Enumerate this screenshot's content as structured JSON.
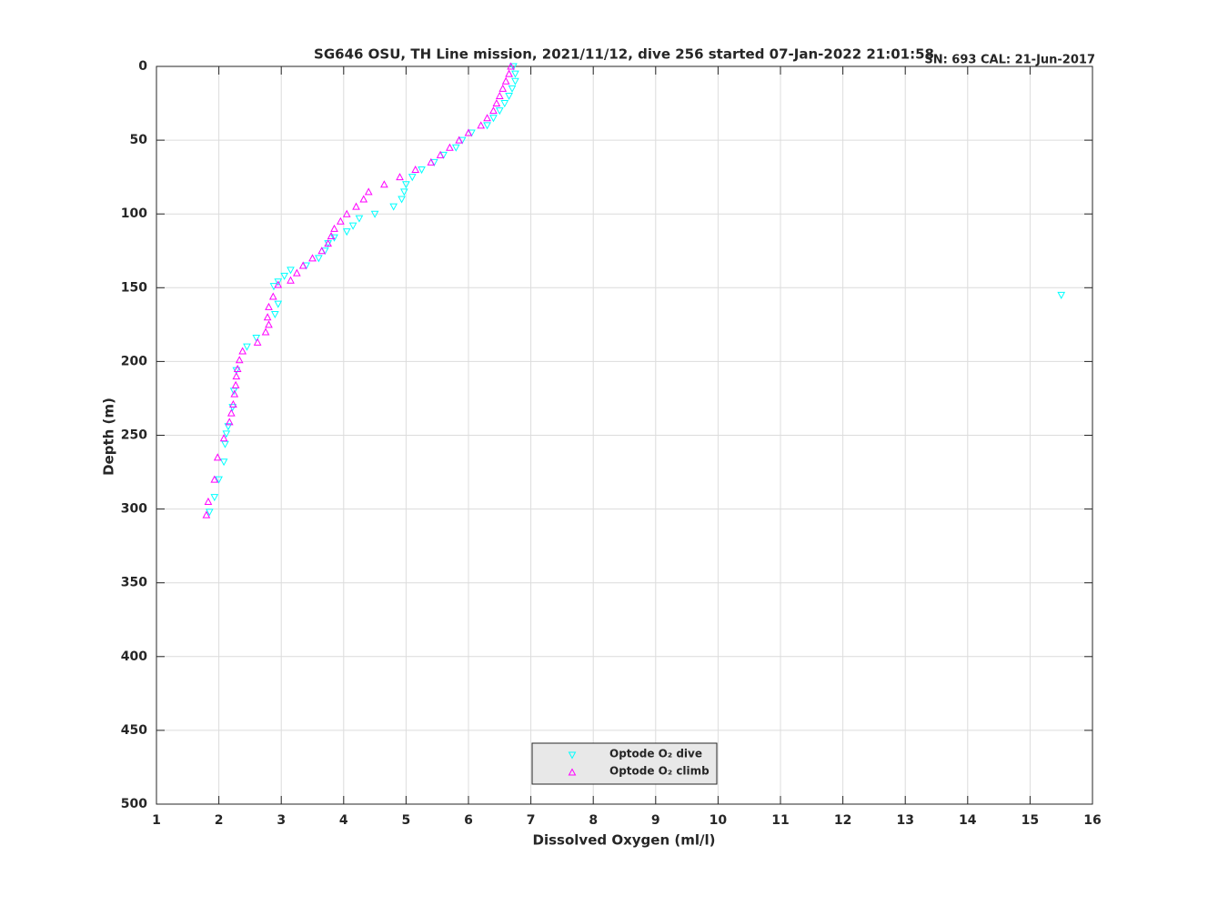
{
  "chart_data": {
    "type": "scatter",
    "title": "SG646 OSU, TH Line mission, 2021/11/12, dive 256 started 07-Jan-2022 21:01:58",
    "annotation": "SN: 693  CAL: 21-Jun-2017",
    "annotation_color": "#8b3a0e",
    "x_label": "Dissolved Oxygen (ml/l)",
    "y_label": "Depth (m)",
    "xlim": [
      1,
      16
    ],
    "xticks": [
      1,
      2,
      3,
      4,
      5,
      6,
      7,
      8,
      9,
      10,
      11,
      12,
      13,
      14,
      15,
      16
    ],
    "ylim": [
      0,
      500
    ],
    "yticks": [
      0,
      50,
      100,
      150,
      200,
      250,
      300,
      350,
      400,
      450,
      500
    ],
    "y_inverted": true,
    "grid": true,
    "legend": "south",
    "series": [
      {
        "name": "Optode O₂ dive",
        "color": "#00ffff",
        "marker": "triangle-down",
        "x": [
          6.72,
          6.75,
          6.75,
          6.7,
          6.65,
          6.58,
          6.5,
          6.4,
          6.3,
          6.05,
          5.9,
          5.8,
          5.6,
          5.45,
          5.25,
          5.1,
          5.0,
          4.97,
          4.93,
          4.8,
          4.5,
          4.25,
          4.15,
          4.05,
          3.85,
          3.75,
          3.7,
          3.6,
          3.4,
          3.15,
          3.05,
          2.95,
          2.88,
          15.5,
          2.95,
          2.9,
          2.6,
          2.45,
          2.28,
          2.24,
          2.22,
          2.15,
          2.12,
          2.1,
          2.08,
          2.0,
          1.93,
          1.85
        ],
        "values": [
          0,
          5,
          10,
          15,
          20,
          25,
          30,
          35,
          40,
          45,
          50,
          55,
          60,
          65,
          70,
          75,
          80,
          85,
          90,
          95,
          100,
          103,
          108,
          112,
          116,
          120,
          125,
          130,
          135,
          138,
          142,
          146,
          149,
          155,
          161,
          168,
          184,
          190,
          206,
          220,
          231,
          244,
          249,
          256,
          268,
          280,
          292,
          302
        ]
      },
      {
        "name": "Optode O₂ climb",
        "color": "#ff00ff",
        "marker": "triangle-up",
        "x": [
          6.68,
          6.65,
          6.6,
          6.55,
          6.5,
          6.45,
          6.4,
          6.3,
          6.2,
          6.0,
          5.85,
          5.7,
          5.55,
          5.4,
          5.15,
          4.9,
          4.65,
          4.4,
          4.32,
          4.2,
          4.05,
          3.95,
          3.85,
          3.8,
          3.75,
          3.65,
          3.5,
          3.35,
          3.25,
          3.15,
          2.95,
          2.87,
          2.8,
          2.78,
          2.8,
          2.75,
          2.62,
          2.38,
          2.33,
          2.3,
          2.28,
          2.27,
          2.25,
          2.23,
          2.2,
          2.17,
          2.08,
          1.98,
          1.93,
          1.83,
          1.8
        ],
        "values": [
          0,
          5,
          10,
          15,
          20,
          25,
          30,
          35,
          40,
          45,
          50,
          55,
          60,
          65,
          70,
          75,
          80,
          85,
          90,
          95,
          100,
          105,
          110,
          115,
          120,
          125,
          130,
          135,
          140,
          145,
          148,
          156,
          163,
          170,
          175,
          180,
          187,
          193,
          199,
          205,
          210,
          216,
          222,
          229,
          235,
          241,
          252,
          265,
          280,
          295,
          304
        ]
      }
    ]
  }
}
